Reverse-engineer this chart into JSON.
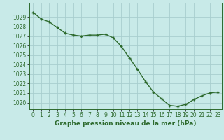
{
  "x": [
    0,
    1,
    2,
    3,
    4,
    5,
    6,
    7,
    8,
    9,
    10,
    11,
    12,
    13,
    14,
    15,
    16,
    17,
    18,
    19,
    20,
    21,
    22,
    23
  ],
  "y": [
    1029.5,
    1028.8,
    1028.5,
    1027.9,
    1027.3,
    1027.1,
    1027.0,
    1027.1,
    1027.1,
    1027.2,
    1026.8,
    1025.9,
    1024.7,
    1023.5,
    1022.2,
    1021.1,
    1020.4,
    1019.7,
    1019.6,
    1019.8,
    1020.3,
    1020.7,
    1021.0,
    1021.1
  ],
  "line_color": "#2d6a2d",
  "marker": "+",
  "marker_size": 3.5,
  "line_width": 1.0,
  "bg_color": "#c8eae8",
  "grid_color": "#a8cece",
  "tick_label_color": "#2d6a2d",
  "xlabel": "Graphe pression niveau de la mer (hPa)",
  "xlabel_color": "#2d6a2d",
  "ylim_min": 1019.3,
  "ylim_max": 1030.5,
  "yticks": [
    1020,
    1021,
    1022,
    1023,
    1024,
    1025,
    1026,
    1027,
    1028,
    1029
  ],
  "xtick_labels": [
    "0",
    "1",
    "2",
    "3",
    "4",
    "5",
    "6",
    "7",
    "8",
    "9",
    "10",
    "11",
    "12",
    "13",
    "14",
    "15",
    "16",
    "17",
    "18",
    "19",
    "20",
    "21",
    "22",
    "23"
  ],
  "tick_fontsize": 5.5,
  "xlabel_fontsize": 6.5
}
